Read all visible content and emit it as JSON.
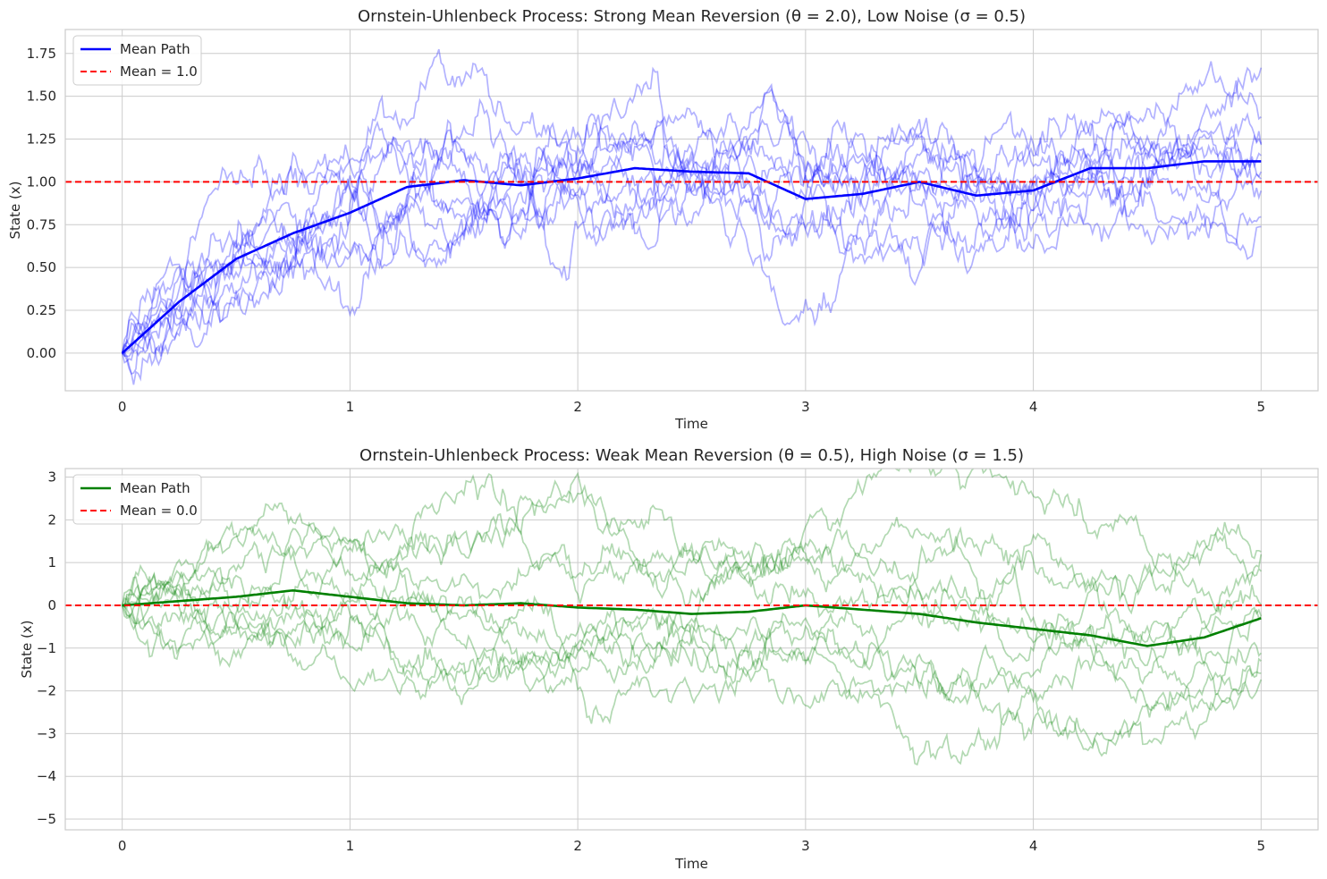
{
  "chart_data": [
    {
      "type": "line",
      "title": "Ornstein-Uhlenbeck Process: Strong Mean Reversion (θ = 2.0), Low Noise (σ = 0.5)",
      "xlabel": "Time",
      "ylabel": "State (x)",
      "xlim": [
        -0.25,
        5.25
      ],
      "ylim": [
        -0.22,
        1.89
      ],
      "xticks": [
        0,
        1,
        2,
        3,
        4,
        5
      ],
      "xtick_labels": [
        "0",
        "1",
        "2",
        "3",
        "4",
        "5"
      ],
      "yticks": [
        0.0,
        0.25,
        0.5,
        0.75,
        1.0,
        1.25,
        1.5,
        1.75
      ],
      "ytick_labels": [
        "0.00",
        "0.25",
        "0.50",
        "0.75",
        "1.00",
        "1.25",
        "1.50",
        "1.75"
      ],
      "grid": true,
      "legend_position": "top-left",
      "params": {
        "theta": 2.0,
        "sigma": 0.5,
        "mu": 1.0,
        "x0": 0.0
      },
      "n_sample_paths": 10,
      "sample_path_color": "#0000ff",
      "mean_path": {
        "name": "Mean Path",
        "color": "#0000ff",
        "x": [
          0,
          0.25,
          0.5,
          0.75,
          1.0,
          1.25,
          1.5,
          1.75,
          2.0,
          2.25,
          2.5,
          2.75,
          3.0,
          3.25,
          3.5,
          3.75,
          4.0,
          4.25,
          4.5,
          4.75,
          5.0
        ],
        "y": [
          0.0,
          0.3,
          0.55,
          0.7,
          0.82,
          0.97,
          1.01,
          0.98,
          1.02,
          1.08,
          1.06,
          1.05,
          0.9,
          0.93,
          1.0,
          0.92,
          0.95,
          1.08,
          1.08,
          1.12,
          1.12
        ]
      },
      "reference_line": {
        "name": "Mean = 1.0",
        "y": 1.0,
        "color": "#ff0000",
        "style": "dashed"
      }
    },
    {
      "type": "line",
      "title": "Ornstein-Uhlenbeck Process: Weak Mean Reversion (θ = 0.5), High Noise (σ = 1.5)",
      "xlabel": "Time",
      "ylabel": "State (x)",
      "xlim": [
        -0.25,
        5.25
      ],
      "ylim": [
        -5.25,
        3.2
      ],
      "xticks": [
        0,
        1,
        2,
        3,
        4,
        5
      ],
      "xtick_labels": [
        "0",
        "1",
        "2",
        "3",
        "4",
        "5"
      ],
      "yticks": [
        -5,
        -4,
        -3,
        -2,
        -1,
        0,
        1,
        2,
        3
      ],
      "ytick_labels": [
        "−5",
        "−4",
        "−3",
        "−2",
        "−1",
        "0",
        "1",
        "2",
        "3"
      ],
      "grid": true,
      "legend_position": "top-left",
      "params": {
        "theta": 0.5,
        "sigma": 1.5,
        "mu": 0.0,
        "x0": 0.0
      },
      "n_sample_paths": 10,
      "sample_path_color": "#008000",
      "mean_path": {
        "name": "Mean Path",
        "color": "#008000",
        "x": [
          0,
          0.25,
          0.5,
          0.75,
          1.0,
          1.25,
          1.5,
          1.75,
          2.0,
          2.25,
          2.5,
          2.75,
          3.0,
          3.25,
          3.5,
          3.75,
          4.0,
          4.25,
          4.5,
          4.75,
          5.0
        ],
        "y": [
          0.0,
          0.1,
          0.2,
          0.35,
          0.2,
          0.05,
          0.0,
          0.05,
          -0.05,
          -0.1,
          -0.2,
          -0.15,
          0.0,
          -0.1,
          -0.2,
          -0.4,
          -0.55,
          -0.7,
          -0.95,
          -0.75,
          -0.3
        ]
      },
      "reference_line": {
        "name": "Mean = 0.0",
        "y": 0.0,
        "color": "#ff0000",
        "style": "dashed"
      }
    }
  ]
}
